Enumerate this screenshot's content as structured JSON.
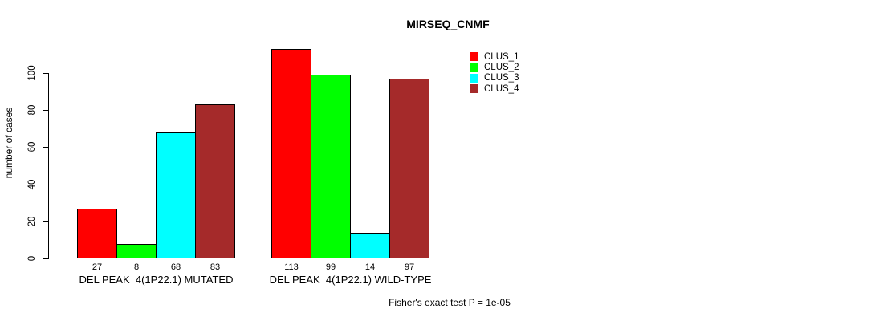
{
  "chart_data": {
    "type": "bar",
    "title": "MIRSEQ_CNMF",
    "xlabel": "",
    "ylabel": "number of cases",
    "ylim": [
      0,
      100
    ],
    "yticks": [
      0,
      20,
      40,
      60,
      80,
      100
    ],
    "grid": false,
    "legend_position": "right",
    "categories": [
      "DEL PEAK  4(1P22.1) MUTATED",
      "DEL PEAK  4(1P22.1) WILD-TYPE"
    ],
    "series": [
      {
        "name": "CLUS_1",
        "color": "#FF0000",
        "values": [
          27,
          113
        ]
      },
      {
        "name": "CLUS_2",
        "color": "#00FF00",
        "values": [
          8,
          99
        ]
      },
      {
        "name": "CLUS_3",
        "color": "#00FFFF",
        "values": [
          68,
          14
        ]
      },
      {
        "name": "CLUS_4",
        "color": "#A52A2A",
        "values": [
          83,
          97
        ]
      }
    ],
    "bar_labels": [
      [
        "27",
        "8",
        "68",
        "83"
      ],
      [
        "113",
        "99",
        "14",
        "97"
      ]
    ],
    "annotation": "Fisher's exact test P = 1e-05"
  }
}
